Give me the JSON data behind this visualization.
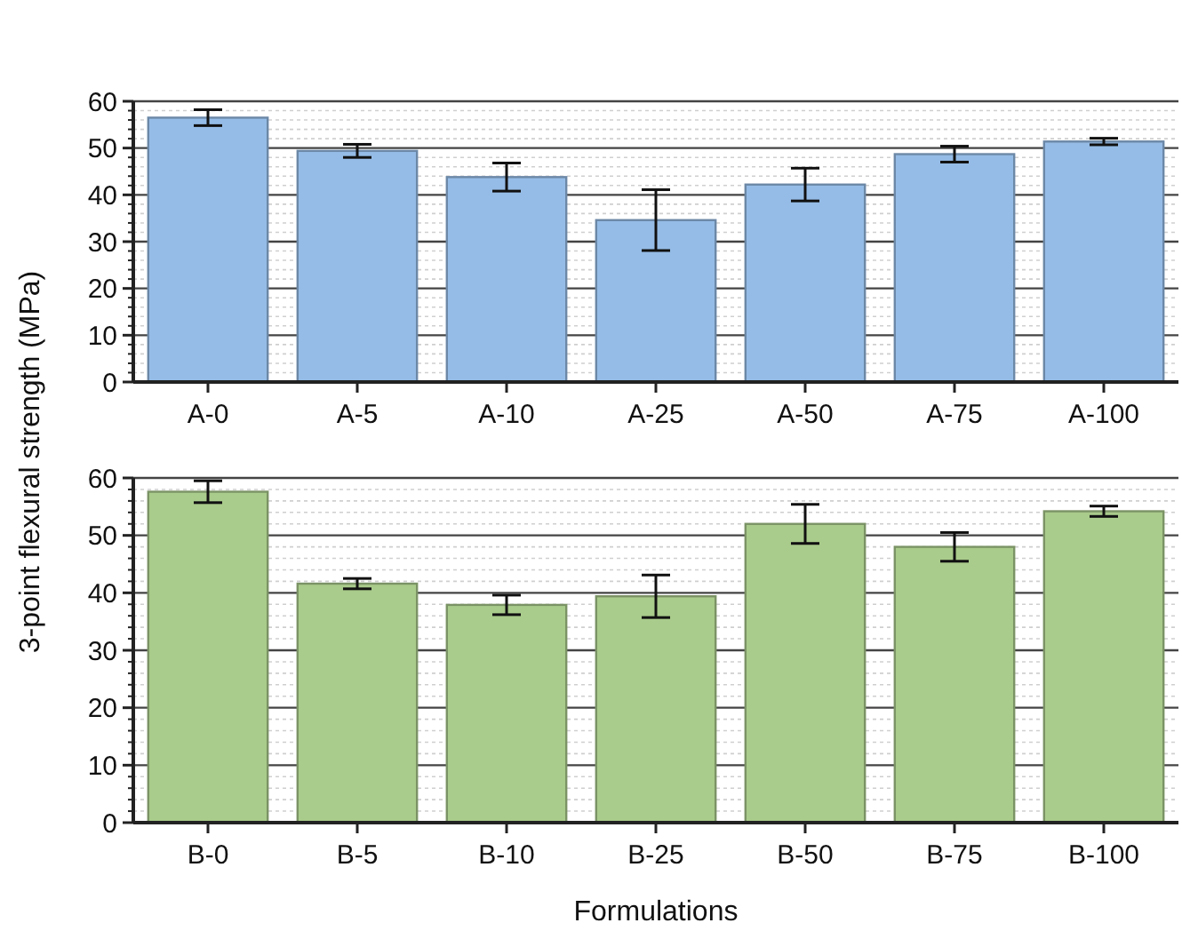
{
  "chart_data": [
    {
      "type": "bar",
      "ylabel": "3-point flexural strength (MPa)",
      "categories": [
        "A-0",
        "A-5",
        "A-10",
        "A-25",
        "A-50",
        "A-75",
        "A-100"
      ],
      "series": [
        {
          "color": "#95bce6",
          "values": [
            56.5,
            49.4,
            43.8,
            34.6,
            42.2,
            48.7,
            51.4
          ],
          "errors": [
            1.7,
            1.4,
            3.0,
            6.5,
            3.5,
            1.7,
            0.7
          ]
        }
      ],
      "ylim": [
        0,
        60
      ],
      "yticks": [
        0,
        10,
        20,
        30,
        40,
        50,
        60
      ],
      "grid": "y"
    },
    {
      "type": "bar",
      "xlabel": "Formulations",
      "categories": [
        "B-0",
        "B-5",
        "B-10",
        "B-25",
        "B-50",
        "B-75",
        "B-100"
      ],
      "series": [
        {
          "color": "#a9cb8b",
          "values": [
            57.6,
            41.6,
            37.9,
            39.4,
            52.0,
            48.0,
            54.2
          ],
          "errors": [
            1.9,
            0.9,
            1.7,
            3.7,
            3.4,
            2.5,
            0.9
          ]
        }
      ],
      "ylim": [
        0,
        60
      ],
      "yticks": [
        0,
        10,
        20,
        30,
        40,
        50,
        60
      ],
      "grid": "y"
    }
  ]
}
